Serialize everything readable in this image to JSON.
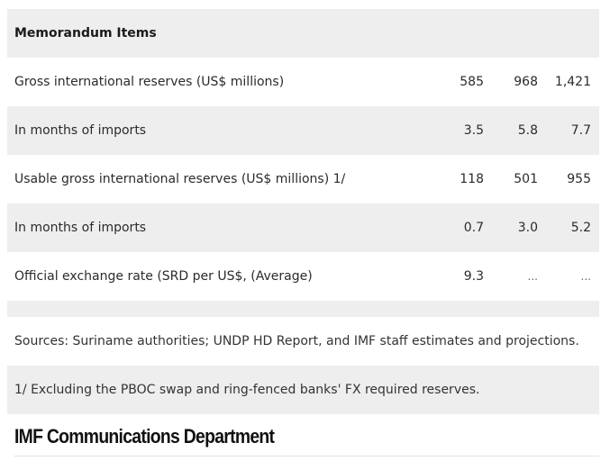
{
  "section_header": "Memorandum Items",
  "rows": [
    {
      "label": "Gross international reserves (US$ millions)",
      "values": [
        "585",
        "968",
        "1,421"
      ]
    },
    {
      "label": "In months of imports",
      "values": [
        "3.5",
        "5.8",
        "7.7"
      ]
    },
    {
      "label": "Usable gross international reserves (US$ millions) 1/",
      "values": [
        "118",
        "501",
        "955"
      ]
    },
    {
      "label": "In months of imports",
      "values": [
        "0.7",
        "3.0",
        "5.2"
      ]
    },
    {
      "label": "Official exchange rate (SRD per US$, (Average)",
      "values": [
        "9.3",
        "...",
        "..."
      ]
    }
  ],
  "sources_note": "Sources: Suriname authorities; UNDP HD Report, and IMF staff estimates and projections.",
  "footnote": "1/ Excluding the PBOC swap and ring-fenced banks' FX required reserves.",
  "footer_title": "IMF Communications Department",
  "colors": {
    "row_shade": "#eeeeee",
    "text": "#2b2b2b"
  }
}
